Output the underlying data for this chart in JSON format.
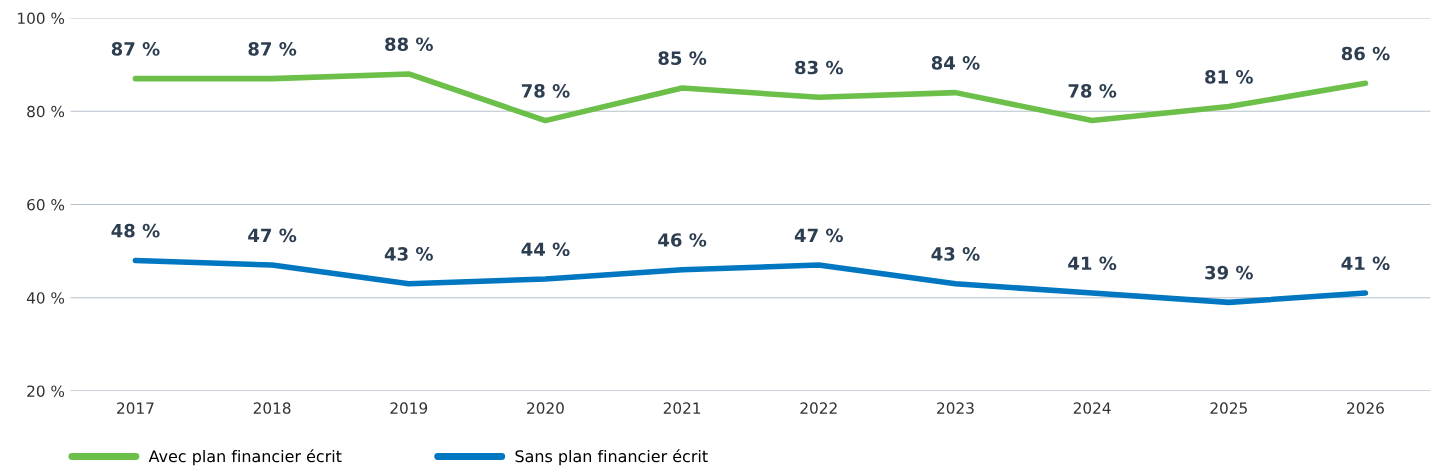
{
  "chart_data": {
    "type": "line",
    "categories": [
      "2017",
      "2018",
      "2019",
      "2020",
      "2021",
      "2022",
      "2023",
      "2024",
      "2025",
      "2026"
    ],
    "series": [
      {
        "name": "Avec plan financier écrit",
        "color": "#6cc04a",
        "values": [
          87,
          87,
          88,
          78,
          85,
          83,
          84,
          78,
          81,
          86
        ],
        "value_labels": [
          "87 %",
          "87 %",
          "88 %",
          "78 %",
          "85 %",
          "83 %",
          "84 %",
          "78 %",
          "81 %",
          "86 %"
        ]
      },
      {
        "name": "Sans plan financier écrit",
        "color": "#0077c0",
        "values": [
          48,
          47,
          43,
          44,
          46,
          47,
          43,
          41,
          39,
          41
        ],
        "value_labels": [
          "48 %",
          "47 %",
          "43 %",
          "44 %",
          "46 %",
          "47 %",
          "43 %",
          "41 %",
          "39 %",
          "41 %"
        ]
      }
    ],
    "ylim": [
      20,
      100
    ],
    "yticks": [
      {
        "value": 20,
        "label": "20 %"
      },
      {
        "value": 40,
        "label": "40 %"
      },
      {
        "value": 60,
        "label": "60 %"
      },
      {
        "value": 80,
        "label": "80 %"
      },
      {
        "value": 100,
        "label": "100 %"
      }
    ],
    "grid": "y",
    "legend": "bottom left",
    "marker": "none",
    "line_style": "solid"
  }
}
